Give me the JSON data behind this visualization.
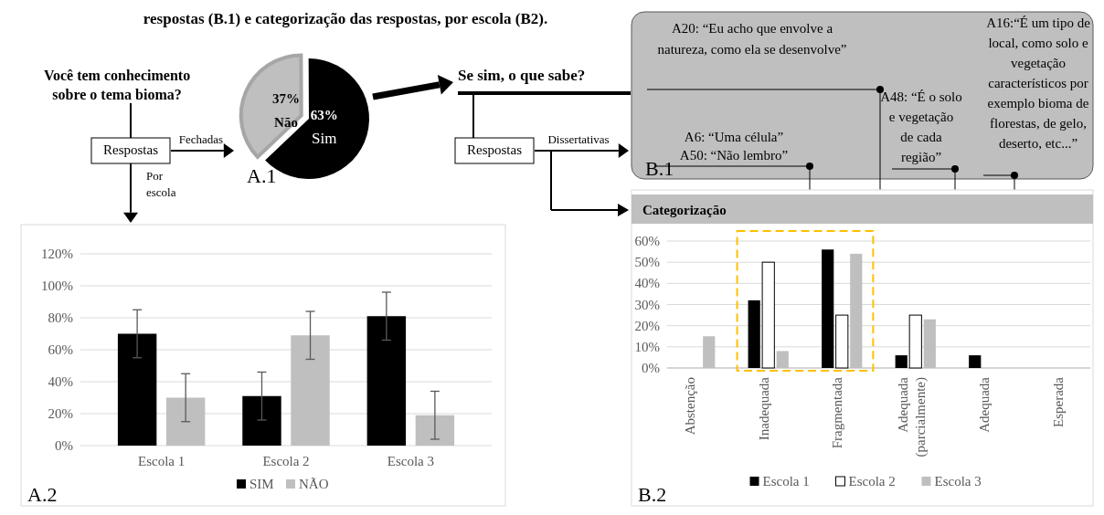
{
  "chart_data": [
    {
      "type": "other",
      "title": "respostas (B.1) e categorização das respostas, por escola (B2).",
      "annotations": [
        "Você tem conhecimento\nsobre o tema bioma?",
        "Respostas",
        "Fechadas",
        "Por\nescola",
        "Se sim, o que sabe?",
        "Respostas",
        "Dissertativas",
        "A20: “Eu acho que envolve a\nnatureza, como ela se desenvolve”",
        "A6: “Uma célula”\nA50: “Não lembro”",
        "A48: “É o solo\ne vegetação\nde cada\nregião”",
        "A16:“É um tipo de\nlocal, como solo e\nvegetação\ncaracterísticos por\nexemplo bioma de\nflorestas, de gelo,\ndeserto, etc...”",
        "B.1"
      ]
    },
    {
      "type": "pie",
      "categories": [
        "Não",
        "Sim"
      ],
      "values": [
        37,
        63
      ],
      "colors": [
        "#bfbfbf",
        "#000000"
      ],
      "value_labels": [
        "37%",
        "63%"
      ],
      "annotations": [
        "A.1"
      ]
    },
    {
      "type": "bar",
      "categories": [
        "Escola 1",
        "Escola 2",
        "Escola 3"
      ],
      "series": [
        {
          "name": "SIM",
          "color": "#000000",
          "values": [
            70,
            31,
            81
          ],
          "errors": [
            15,
            15,
            15
          ]
        },
        {
          "name": "NÃO",
          "color": "#bfbfbf",
          "values": [
            30,
            69,
            19
          ],
          "errors": [
            15,
            15,
            15
          ]
        }
      ],
      "ylim": [
        0,
        120
      ],
      "yticks": [
        {
          "value": 0,
          "label": "0%"
        },
        {
          "value": 20,
          "label": "20%"
        },
        {
          "value": 40,
          "label": "40%"
        },
        {
          "value": 60,
          "label": "60%"
        },
        {
          "value": 80,
          "label": "80%"
        },
        {
          "value": 100,
          "label": "100%"
        },
        {
          "value": 120,
          "label": "120%"
        }
      ],
      "grid": "y",
      "legend": "bottom",
      "annotations": [
        "A.2"
      ]
    },
    {
      "type": "bar",
      "title": "Categorização",
      "categories": [
        "Abstenção",
        "Inadequada",
        "Fragmentada",
        "Adequada (parcialmente)",
        "Adequada",
        "Esperada"
      ],
      "series": [
        {
          "name": "Escola 1",
          "color": "#000000",
          "values": [
            0,
            32,
            56,
            6,
            6,
            0
          ]
        },
        {
          "name": "Escola 2",
          "color": "#ffffff",
          "values": [
            0,
            50,
            25,
            25,
            0,
            0
          ]
        },
        {
          "name": "Escola 3",
          "color": "#bfbfbf",
          "values": [
            15,
            8,
            54,
            23,
            0,
            0
          ]
        }
      ],
      "ylim": [
        0,
        60
      ],
      "yticks": [
        {
          "value": 0,
          "label": "0%"
        },
        {
          "value": 10,
          "label": "10%"
        },
        {
          "value": 20,
          "label": "20%"
        },
        {
          "value": 30,
          "label": "30%"
        },
        {
          "value": 40,
          "label": "40%"
        },
        {
          "value": 50,
          "label": "50%"
        },
        {
          "value": 60,
          "label": "60%"
        }
      ],
      "grid": "y",
      "legend": "bottom",
      "annotations": [
        "B.2"
      ]
    }
  ]
}
